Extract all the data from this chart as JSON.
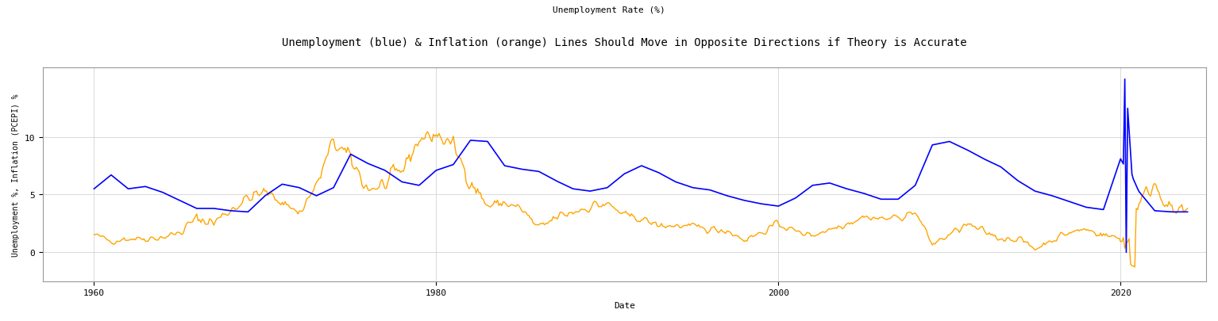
{
  "title": "Unemployment (blue) & Inflation (orange) Lines Should Move in Opposite Directions if Theory is Accurate",
  "xlabel": "Date",
  "ylabel": "Unemployment %, Inflation (PCEPI) %",
  "top_label": "Unemployment Rate (%)",
  "title_fontsize": 10,
  "label_fontsize": 8,
  "unemployment_color": "#0000FF",
  "inflation_color": "#FFA500",
  "background_color": "#FFFFFF",
  "grid_color": "#CCCCCC",
  "linewidth_unemployment": 1.2,
  "linewidth_inflation": 1.0,
  "ylim": [
    -2.5,
    16
  ],
  "xlim": [
    1957,
    2025
  ],
  "figsize": [
    15.34,
    4.06
  ],
  "dpi": 100,
  "yticks": [
    0,
    5,
    10
  ],
  "xticks": [
    1960,
    1980,
    2000,
    2020
  ]
}
